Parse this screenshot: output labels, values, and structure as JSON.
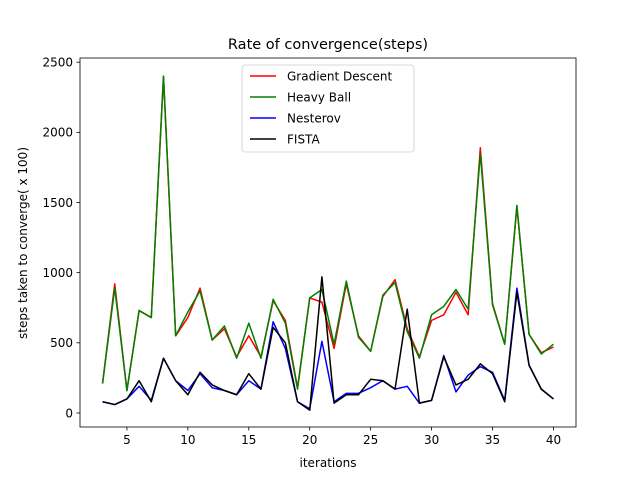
{
  "chart_data": {
    "type": "line",
    "title": "Rate of convergence(steps)",
    "xlabel": "iterations",
    "ylabel": "steps taken to converge( x 100)",
    "xlim": [
      1.15,
      41.85
    ],
    "ylim": [
      -100,
      2530
    ],
    "xticks": [
      5,
      10,
      15,
      20,
      25,
      30,
      35,
      40
    ],
    "yticks": [
      0,
      500,
      1000,
      1500,
      2000,
      2500
    ],
    "grid": false,
    "legend_position": "top-center",
    "x": [
      3,
      4,
      5,
      6,
      7,
      8,
      9,
      10,
      11,
      12,
      13,
      14,
      15,
      16,
      17,
      18,
      19,
      20,
      21,
      22,
      23,
      24,
      25,
      26,
      27,
      28,
      29,
      30,
      31,
      32,
      33,
      34,
      35,
      36,
      37,
      38,
      39,
      40
    ],
    "series": [
      {
        "name": "Gradient Descent",
        "color": "#ff0000",
        "values": [
          210,
          920,
          160,
          730,
          680,
          2400,
          550,
          680,
          890,
          520,
          600,
          400,
          550,
          400,
          800,
          660,
          180,
          820,
          790,
          460,
          920,
          550,
          440,
          830,
          950,
          600,
          400,
          660,
          700,
          860,
          700,
          1890,
          780,
          490,
          1470,
          560,
          430,
          470
        ]
      },
      {
        "name": "Heavy Ball",
        "color": "#008000",
        "values": [
          210,
          890,
          160,
          730,
          680,
          2400,
          550,
          720,
          870,
          520,
          620,
          390,
          640,
          390,
          810,
          640,
          170,
          820,
          880,
          490,
          940,
          540,
          440,
          840,
          930,
          580,
          390,
          700,
          760,
          880,
          740,
          1850,
          770,
          490,
          1480,
          560,
          420,
          490
        ]
      },
      {
        "name": "Nesterov",
        "color": "#0000ff",
        "values": [
          80,
          60,
          100,
          190,
          90,
          390,
          230,
          160,
          280,
          180,
          160,
          130,
          230,
          170,
          650,
          460,
          80,
          30,
          510,
          80,
          140,
          140,
          180,
          230,
          170,
          190,
          70,
          90,
          410,
          150,
          270,
          330,
          290,
          90,
          890,
          340,
          170,
          100
        ]
      },
      {
        "name": "FISTA",
        "color": "#000000",
        "values": [
          80,
          60,
          100,
          230,
          80,
          390,
          230,
          130,
          290,
          200,
          160,
          130,
          280,
          170,
          610,
          500,
          80,
          20,
          970,
          70,
          130,
          130,
          240,
          230,
          170,
          740,
          70,
          90,
          400,
          200,
          240,
          350,
          280,
          80,
          860,
          340,
          170,
          100
        ]
      }
    ]
  }
}
